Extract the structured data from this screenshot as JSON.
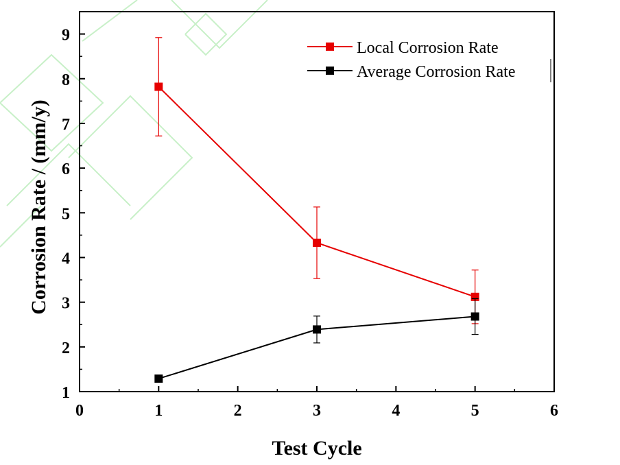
{
  "chart_data": {
    "type": "line",
    "xlabel": "Test Cycle",
    "ylabel": "Corrosion Rate / (mm/y)",
    "xlim": [
      0,
      6
    ],
    "ylim": [
      1,
      9.5
    ],
    "x_ticks": [
      "0",
      "1",
      "2",
      "3",
      "4",
      "5",
      "6"
    ],
    "y_ticks": [
      "1",
      "2",
      "3",
      "4",
      "5",
      "6",
      "7",
      "8",
      "9"
    ],
    "legend_position": "top-right",
    "series": [
      {
        "name": "Local Corrosion Rate",
        "color": "#e60000",
        "x": [
          1,
          3,
          5
        ],
        "values": [
          7.82,
          4.33,
          3.12
        ],
        "err_low": [
          6.72,
          3.53,
          2.52
        ],
        "err_high": [
          8.92,
          5.13,
          3.72
        ]
      },
      {
        "name": "Average Corrosion Rate",
        "color": "#000000",
        "x": [
          1,
          3,
          5
        ],
        "values": [
          1.29,
          2.39,
          2.68
        ],
        "err_low": [
          1.29,
          2.09,
          2.28
        ],
        "err_high": [
          1.29,
          2.69,
          3.08
        ]
      }
    ]
  }
}
